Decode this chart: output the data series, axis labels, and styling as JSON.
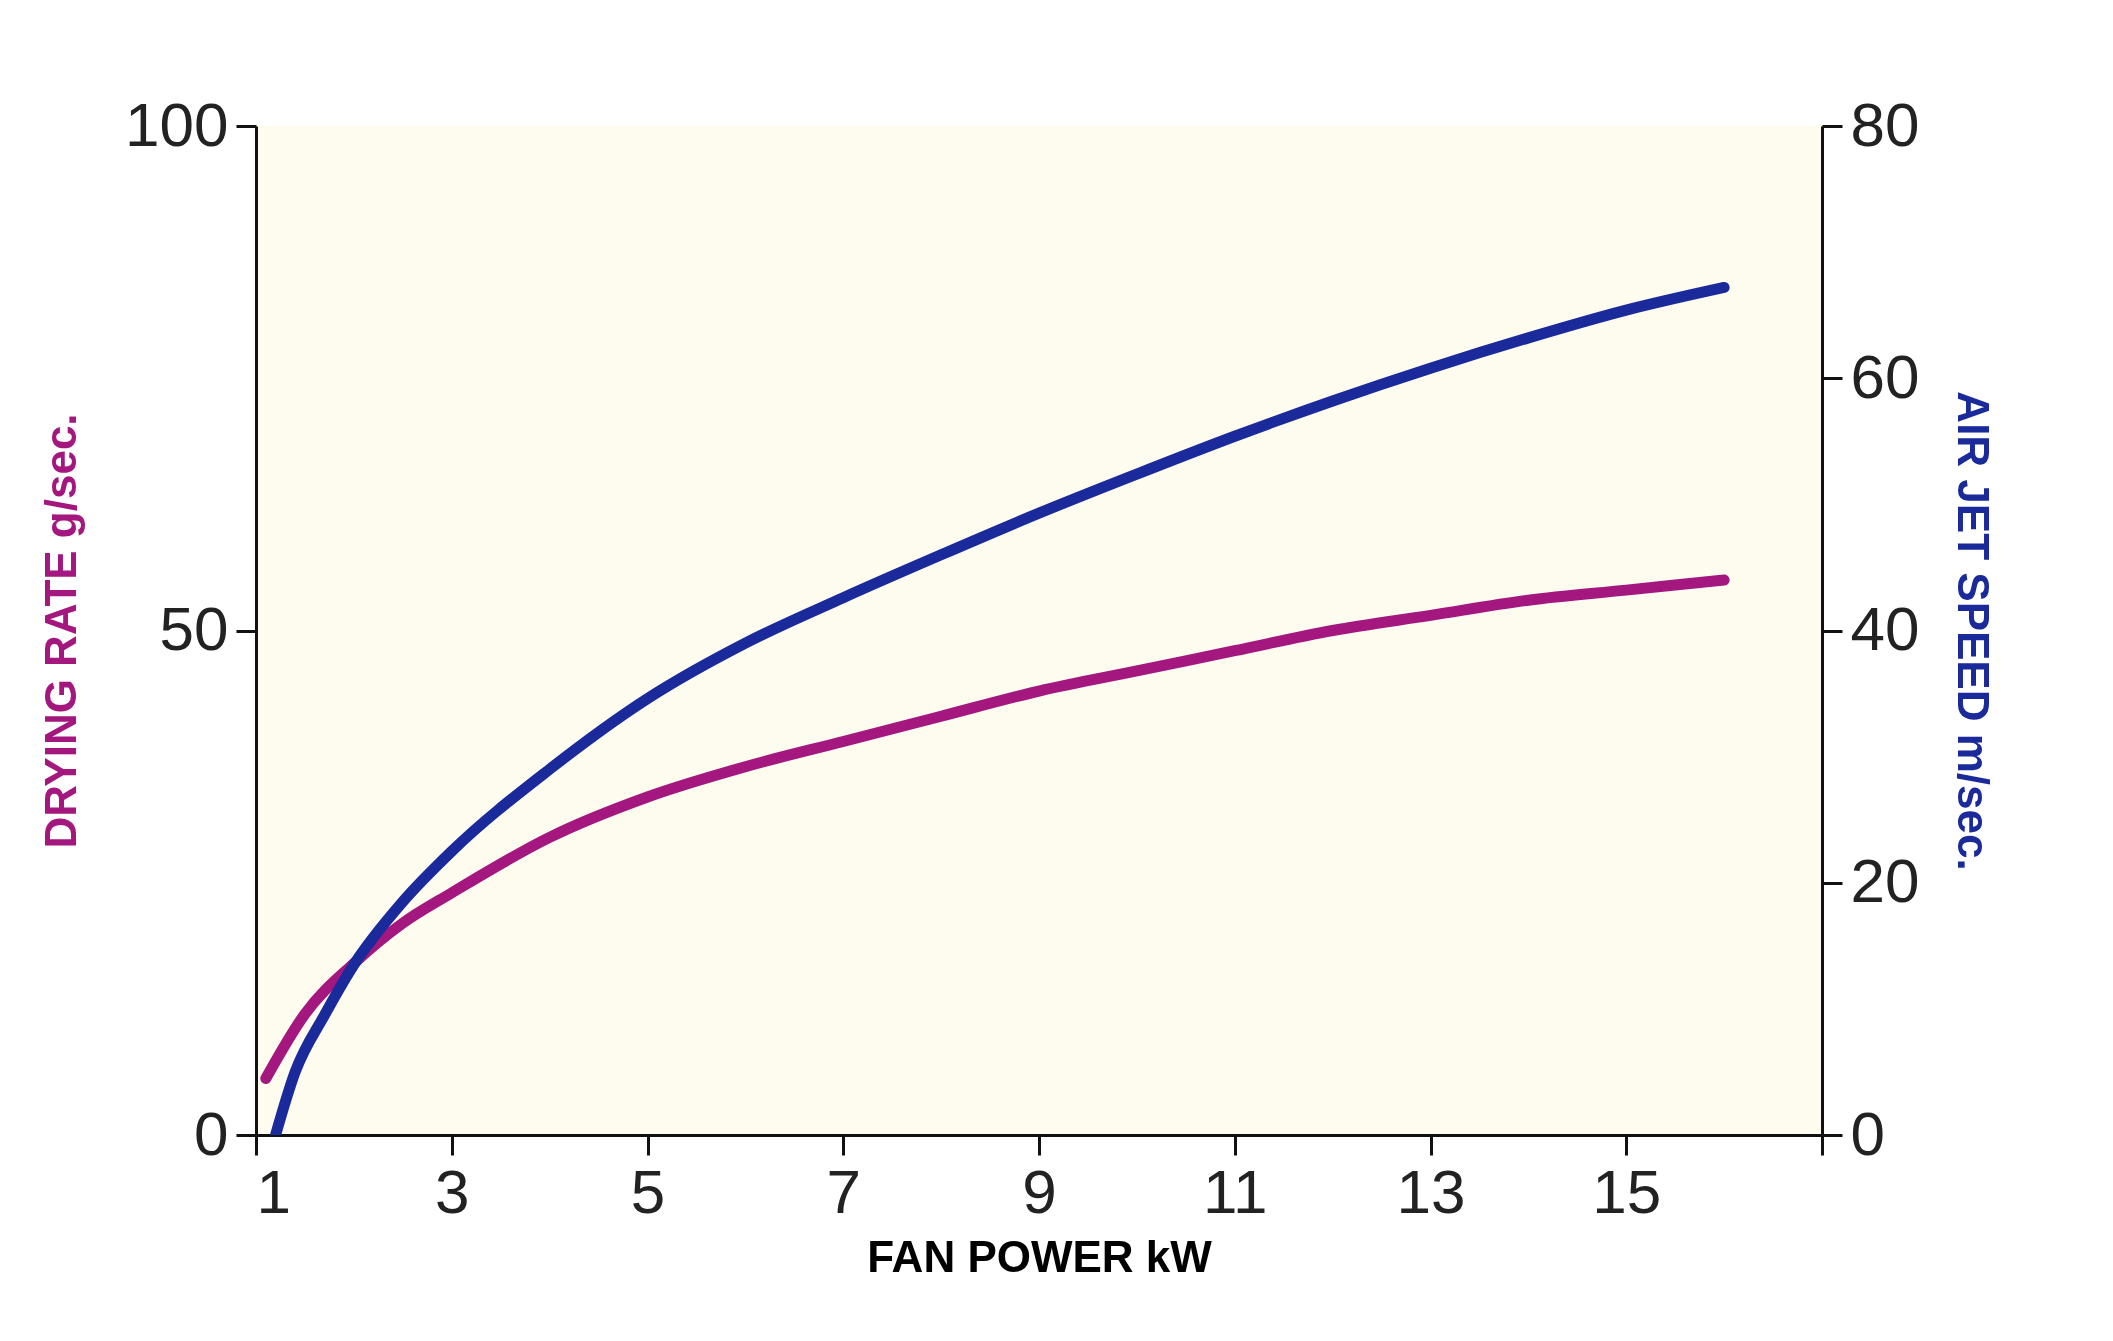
{
  "chart_data": {
    "type": "line",
    "xlabel": "FAN POWER kW",
    "ylabel": "DRYING RATE g/sec.",
    "y2label": "AIR JET SPEED m/sec.",
    "xlim": [
      1,
      17
    ],
    "xticks": [
      1,
      3,
      5,
      7,
      9,
      11,
      13,
      15,
      {
        "value": 17,
        "label": null
      }
    ],
    "ylim": [
      0,
      100
    ],
    "yticks": [
      0,
      50,
      100
    ],
    "y2lim": [
      0,
      80
    ],
    "y2ticks": [
      0,
      20,
      40,
      60,
      80
    ],
    "grid": false,
    "series": [
      {
        "color": "#a3177f",
        "x": [
          1.1,
          1.5,
          2,
          2.5,
          3,
          4,
          5,
          6,
          7,
          8,
          9,
          10,
          11,
          12,
          13,
          14,
          15,
          16
        ],
        "values": [
          5.6,
          12,
          17,
          21,
          24,
          29.5,
          33.5,
          36.5,
          39,
          41.5,
          44,
          46,
          48,
          50,
          51.5,
          53,
          54,
          55
        ]
      },
      {
        "color": "#1b2a9b",
        "axis": "y2",
        "x": [
          1.2,
          1.4,
          1.7,
          2,
          2.5,
          3,
          4,
          5,
          6,
          7,
          8,
          9,
          10,
          11,
          12,
          13,
          14,
          15,
          16
        ],
        "values": [
          0,
          5,
          9.5,
          13.5,
          18.5,
          22.5,
          29,
          34.6,
          39,
          42.6,
          46,
          49.3,
          52.4,
          55.4,
          58.2,
          60.8,
          63.2,
          65.4,
          67.2
        ]
      }
    ]
  }
}
